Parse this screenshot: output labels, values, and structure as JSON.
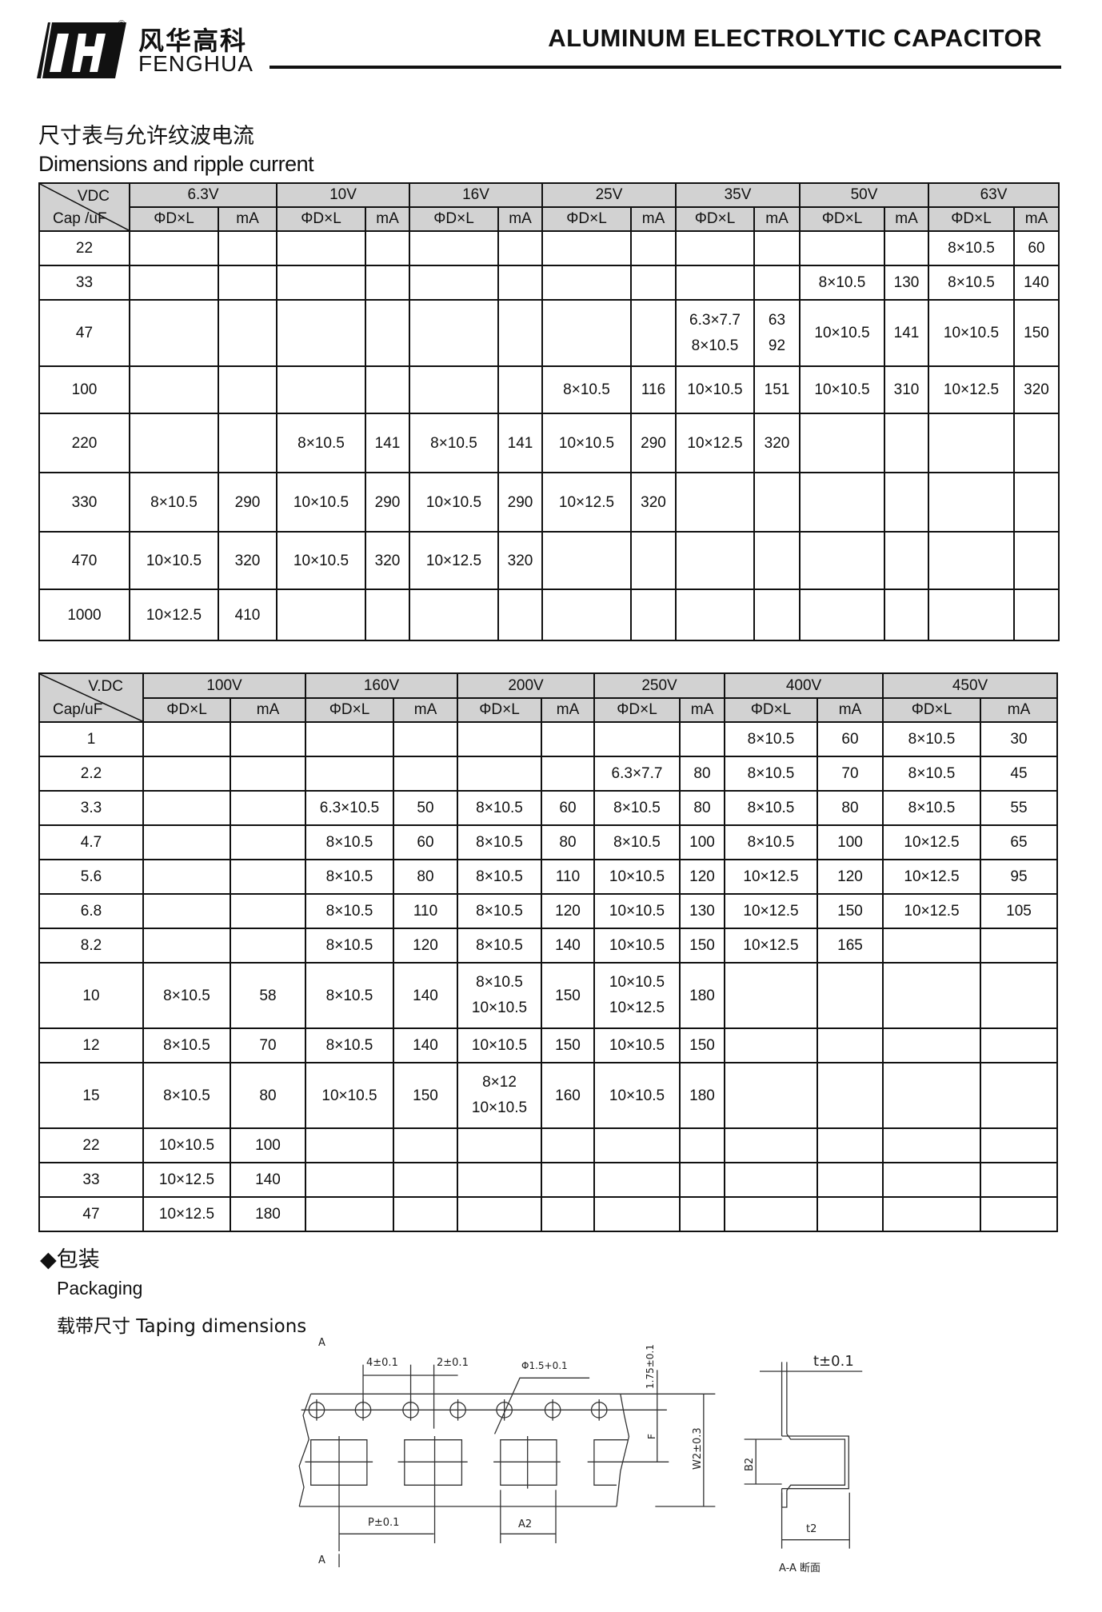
{
  "header": {
    "brand_cn": "风华高科",
    "brand_en": "FENGHUA",
    "registered": "®",
    "title": "ALUMINUM ELECTROLYTIC CAPACITOR"
  },
  "section": {
    "title_cn": "尺寸表与允许纹波电流",
    "title_en": "Dimensions and ripple current"
  },
  "table1": {
    "corner_top": "VDC",
    "corner_bottom": "Cap /uF",
    "voltages": [
      "6.3V",
      "10V",
      "16V",
      "25V",
      "35V",
      "50V",
      "63V"
    ],
    "sub": [
      "ΦD×L",
      "mA"
    ],
    "rows": [
      {
        "cap": "22",
        "cells": [
          "",
          "",
          "",
          "",
          "",
          "",
          "",
          "",
          "",
          "",
          "",
          "",
          "8×10.5",
          "60"
        ]
      },
      {
        "cap": "33",
        "cells": [
          "",
          "",
          "",
          "",
          "",
          "",
          "",
          "",
          "",
          "",
          "8×10.5",
          "130",
          "8×10.5",
          "140"
        ]
      },
      {
        "cap": "47",
        "cells": [
          "",
          "",
          "",
          "",
          "",
          "",
          "",
          "",
          [
            "6.3×7.7",
            "8×10.5"
          ],
          [
            "63",
            "92"
          ],
          "10×10.5",
          "141",
          "10×10.5",
          "150"
        ]
      },
      {
        "cap": "100",
        "cells": [
          "",
          "",
          "",
          "",
          "",
          "",
          "8×10.5",
          "116",
          "10×10.5",
          "151",
          "10×10.5",
          "310",
          "10×12.5",
          "320"
        ]
      },
      {
        "cap": "220",
        "cells": [
          "",
          "",
          "8×10.5",
          "141",
          "8×10.5",
          "141",
          "10×10.5",
          "290",
          "10×12.5",
          "320",
          "",
          "",
          "",
          ""
        ]
      },
      {
        "cap": "330",
        "cells": [
          "8×10.5",
          "290",
          "10×10.5",
          "290",
          "10×10.5",
          "290",
          "10×12.5",
          "320",
          "",
          "",
          "",
          "",
          "",
          ""
        ]
      },
      {
        "cap": "470",
        "cells": [
          "10×10.5",
          "320",
          "10×10.5",
          "320",
          "10×12.5",
          "320",
          "",
          "",
          "",
          "",
          "",
          "",
          "",
          ""
        ]
      },
      {
        "cap": "1000",
        "cells": [
          "10×12.5",
          "410",
          "",
          "",
          "",
          "",
          "",
          "",
          "",
          "",
          "",
          "",
          "",
          ""
        ]
      }
    ]
  },
  "table2": {
    "corner_top": "V.DC",
    "corner_bottom": "Cap/uF",
    "voltages": [
      "100V",
      "160V",
      "200V",
      "250V",
      "400V",
      "450V"
    ],
    "sub": [
      "ΦD×L",
      "mA"
    ],
    "rows": [
      {
        "cap": "1",
        "cells": [
          "",
          "",
          "",
          "",
          "",
          "",
          "",
          "",
          "8×10.5",
          "60",
          "8×10.5",
          "30"
        ]
      },
      {
        "cap": "2.2",
        "cells": [
          "",
          "",
          "",
          "",
          "",
          "",
          "6.3×7.7",
          "80",
          "8×10.5",
          "70",
          "8×10.5",
          "45"
        ]
      },
      {
        "cap": "3.3",
        "cells": [
          "",
          "",
          "6.3×10.5",
          "50",
          "8×10.5",
          "60",
          "8×10.5",
          "80",
          "8×10.5",
          "80",
          "8×10.5",
          "55"
        ]
      },
      {
        "cap": "4.7",
        "cells": [
          "",
          "",
          "8×10.5",
          "60",
          "8×10.5",
          "80",
          "8×10.5",
          "100",
          "8×10.5",
          "100",
          "10×12.5",
          "65"
        ]
      },
      {
        "cap": "5.6",
        "cells": [
          "",
          "",
          "8×10.5",
          "80",
          "8×10.5",
          "110",
          "10×10.5",
          "120",
          "10×12.5",
          "120",
          "10×12.5",
          "95"
        ]
      },
      {
        "cap": "6.8",
        "cells": [
          "",
          "",
          "8×10.5",
          "110",
          "8×10.5",
          "120",
          "10×10.5",
          "130",
          "10×12.5",
          "150",
          "10×12.5",
          "105"
        ]
      },
      {
        "cap": "8.2",
        "cells": [
          "",
          "",
          "8×10.5",
          "120",
          "8×10.5",
          "140",
          "10×10.5",
          "150",
          "10×12.5",
          "165",
          "",
          ""
        ]
      },
      {
        "cap": "10",
        "cells": [
          "8×10.5",
          "58",
          "8×10.5",
          "140",
          [
            "8×10.5",
            "10×10.5"
          ],
          "150",
          [
            "10×10.5",
            "10×12.5"
          ],
          "180",
          "",
          "",
          "",
          ""
        ]
      },
      {
        "cap": "12",
        "cells": [
          "8×10.5",
          "70",
          "8×10.5",
          "140",
          "10×10.5",
          "150",
          "10×10.5",
          "150",
          "",
          "",
          "",
          ""
        ]
      },
      {
        "cap": "15",
        "cells": [
          "8×10.5",
          "80",
          "10×10.5",
          "150",
          [
            "8×12",
            "10×10.5"
          ],
          "160",
          "10×10.5",
          "180",
          "",
          "",
          "",
          ""
        ]
      },
      {
        "cap": "22",
        "cells": [
          "10×10.5",
          "100",
          "",
          "",
          "",
          "",
          "",
          "",
          "",
          "",
          "",
          ""
        ]
      },
      {
        "cap": "33",
        "cells": [
          "10×12.5",
          "140",
          "",
          "",
          "",
          "",
          "",
          "",
          "",
          "",
          "",
          ""
        ]
      },
      {
        "cap": "47",
        "cells": [
          "10×12.5",
          "180",
          "",
          "",
          "",
          "",
          "",
          "",
          "",
          "",
          "",
          ""
        ]
      }
    ]
  },
  "packaging": {
    "title_cn": "◆包装",
    "title_en": "Packaging",
    "subtitle": "载带尺寸  Taping dimensions"
  },
  "diagram": {
    "a_top": "A",
    "a_bottom": "A",
    "pitch_hole": "4±0.1",
    "offset": "2±0.1",
    "hole_dia": "Φ1.5+0.1",
    "edge": "1.75±0.1",
    "f": "F",
    "w2": "W2±0.3",
    "p": "P±0.1",
    "a2": "A2",
    "t": "t±0.1",
    "b2": "B2",
    "t2": "t2",
    "section": "A-A 断面"
  }
}
